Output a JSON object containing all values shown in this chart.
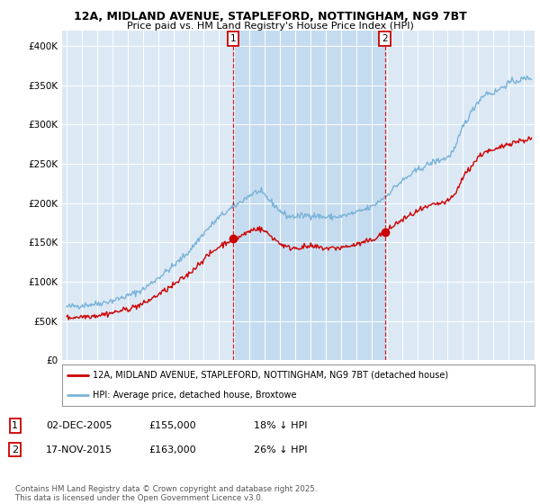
{
  "title_line1": "12A, MIDLAND AVENUE, STAPLEFORD, NOTTINGHAM, NG9 7BT",
  "title_line2": "Price paid vs. HM Land Registry's House Price Index (HPI)",
  "background_color": "#ffffff",
  "plot_bg_color": "#dce9f5",
  "shade_color": "#c5dcf0",
  "hpi_color": "#7ab3d8",
  "price_color": "#cc0000",
  "marker1_x": 2005.92,
  "marker2_x": 2015.88,
  "legend_line1": "12A, MIDLAND AVENUE, STAPLEFORD, NOTTINGHAM, NG9 7BT (detached house)",
  "legend_line2": "HPI: Average price, detached house, Broxtowe",
  "table_row1": [
    "1",
    "02-DEC-2005",
    "£155,000",
    "18% ↓ HPI"
  ],
  "table_row2": [
    "2",
    "17-NOV-2015",
    "£163,000",
    "26% ↓ HPI"
  ],
  "footnote": "Contains HM Land Registry data © Crown copyright and database right 2025.\nThis data is licensed under the Open Government Licence v3.0.",
  "ylim": [
    0,
    420000
  ],
  "yticks": [
    0,
    50000,
    100000,
    150000,
    200000,
    250000,
    300000,
    350000,
    400000
  ],
  "xlim_left": 1994.7,
  "xlim_right": 2025.7
}
